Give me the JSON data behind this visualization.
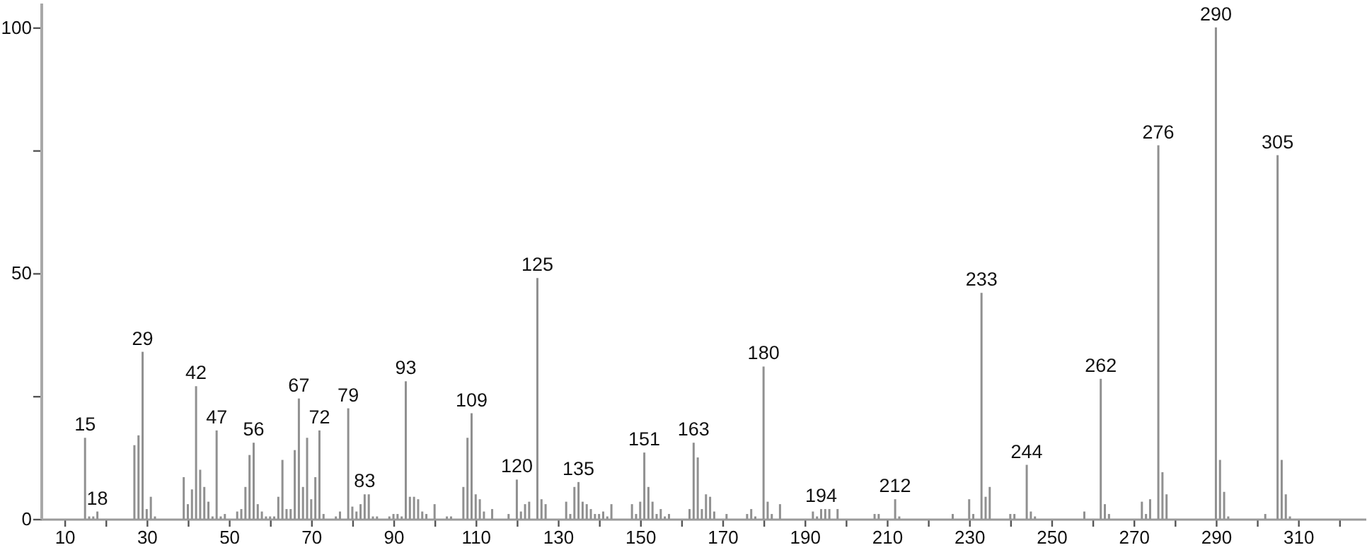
{
  "chart_data": {
    "type": "bar",
    "color": "#909090",
    "x": [
      15,
      16,
      17,
      18,
      27,
      28,
      29,
      30,
      31,
      32,
      39,
      40,
      41,
      42,
      43,
      44,
      45,
      46,
      47,
      48,
      49,
      52,
      53,
      54,
      55,
      56,
      57,
      58,
      59,
      60,
      61,
      62,
      63,
      64,
      65,
      66,
      67,
      68,
      69,
      70,
      71,
      72,
      73,
      76,
      77,
      79,
      80,
      81,
      82,
      83,
      84,
      85,
      86,
      89,
      90,
      91,
      92,
      93,
      94,
      95,
      96,
      97,
      98,
      100,
      103,
      104,
      107,
      108,
      109,
      110,
      111,
      112,
      114,
      118,
      120,
      121,
      122,
      123,
      125,
      126,
      127,
      132,
      133,
      134,
      135,
      136,
      137,
      138,
      139,
      140,
      141,
      142,
      143,
      148,
      149,
      150,
      151,
      152,
      153,
      154,
      155,
      156,
      157,
      162,
      163,
      164,
      165,
      166,
      167,
      168,
      171,
      176,
      177,
      178,
      180,
      181,
      182,
      184,
      192,
      193,
      194,
      195,
      196,
      198,
      207,
      208,
      212,
      213,
      226,
      230,
      231,
      233,
      234,
      235,
      240,
      241,
      244,
      245,
      246,
      258,
      262,
      263,
      264,
      272,
      273,
      274,
      276,
      277,
      278,
      290,
      291,
      292,
      293,
      302,
      305,
      306,
      307,
      308
    ],
    "values": [
      16.5,
      0.5,
      0.5,
      1.5,
      15,
      17,
      34,
      2,
      4.5,
      0.5,
      8.5,
      3,
      6,
      27,
      10,
      6.5,
      3.5,
      0.5,
      18,
      0.5,
      1,
      1.5,
      2,
      6.5,
      13,
      15.5,
      3,
      1.5,
      0.5,
      0.5,
      0.5,
      4.5,
      12,
      2,
      2,
      14,
      24.5,
      6.5,
      16.5,
      4,
      8.5,
      18,
      1,
      0.5,
      1.5,
      22.5,
      2.5,
      1.5,
      3,
      5,
      5,
      0.5,
      0.5,
      0.5,
      1,
      1,
      0.5,
      28,
      4.5,
      4.5,
      4,
      1.5,
      1,
      3,
      0.5,
      0.5,
      6.5,
      16.5,
      21.5,
      5,
      4,
      1.5,
      2,
      1,
      8,
      1.5,
      3,
      3.5,
      49,
      4,
      3,
      3.5,
      1,
      6.5,
      7.5,
      3.5,
      3,
      2,
      1,
      1,
      1.5,
      0.5,
      3,
      3,
      1,
      3.5,
      13.5,
      6.5,
      3.5,
      1,
      2,
      0.5,
      1,
      2,
      15.5,
      12.5,
      2,
      5,
      4.5,
      1.5,
      1,
      1,
      2,
      0.5,
      31,
      3.5,
      1,
      3,
      1.5,
      0.5,
      2,
      2,
      2,
      2,
      1,
      1,
      4,
      0.5,
      1,
      4,
      1,
      46,
      4.5,
      6.5,
      1,
      1,
      11,
      1.5,
      0.5,
      1.5,
      28.5,
      3,
      1,
      3.5,
      1,
      4,
      76,
      9.5,
      5,
      100,
      12,
      5.5,
      0.5,
      1,
      74,
      12,
      5,
      0.5
    ],
    "xlim": [
      4.3,
      326.4
    ],
    "ylim": [
      0,
      105
    ],
    "xticks": [
      10,
      {
        "value": 20,
        "label": null
      },
      30,
      {
        "value": 40,
        "label": null
      },
      50,
      {
        "value": 60,
        "label": null
      },
      70,
      {
        "value": 80,
        "label": null
      },
      90,
      {
        "value": 100,
        "label": null
      },
      110,
      {
        "value": 120,
        "label": null
      },
      130,
      {
        "value": 140,
        "label": null
      },
      150,
      {
        "value": 160,
        "label": null
      },
      170,
      {
        "value": 180,
        "label": null
      },
      190,
      {
        "value": 200,
        "label": null
      },
      210,
      {
        "value": 220,
        "label": null
      },
      230,
      {
        "value": 240,
        "label": null
      },
      250,
      {
        "value": 260,
        "label": null
      },
      270,
      {
        "value": 280,
        "label": null
      },
      290,
      {
        "value": 300,
        "label": null
      },
      310,
      {
        "value": 320,
        "label": null
      }
    ],
    "yticks": [
      0,
      {
        "value": 25,
        "label": null
      },
      50,
      {
        "value": 75,
        "label": null
      },
      100
    ],
    "annotations": [
      {
        "text": "15",
        "x": 15,
        "y": 16.5
      },
      {
        "text": "18",
        "x": 18,
        "y": 1.5
      },
      {
        "text": "29",
        "x": 29,
        "y": 34
      },
      {
        "text": "42",
        "x": 42,
        "y": 27
      },
      {
        "text": "47",
        "x": 47,
        "y": 18
      },
      {
        "text": "56",
        "x": 56,
        "y": 15.5
      },
      {
        "text": "67",
        "x": 67,
        "y": 24.5
      },
      {
        "text": "72",
        "x": 72,
        "y": 18
      },
      {
        "text": "79",
        "x": 79,
        "y": 22.5
      },
      {
        "text": "83",
        "x": 83,
        "y": 5
      },
      {
        "text": "93",
        "x": 93,
        "y": 28
      },
      {
        "text": "109",
        "x": 109,
        "y": 21.5
      },
      {
        "text": "120",
        "x": 120,
        "y": 8
      },
      {
        "text": "125",
        "x": 125,
        "y": 49
      },
      {
        "text": "135",
        "x": 135,
        "y": 7.5
      },
      {
        "text": "151",
        "x": 151,
        "y": 13.5
      },
      {
        "text": "163",
        "x": 163,
        "y": 15.5
      },
      {
        "text": "180",
        "x": 180,
        "y": 31
      },
      {
        "text": "194",
        "x": 194,
        "y": 2
      },
      {
        "text": "212",
        "x": 212,
        "y": 4
      },
      {
        "text": "233",
        "x": 233,
        "y": 46
      },
      {
        "text": "244",
        "x": 244,
        "y": 11
      },
      {
        "text": "262",
        "x": 262,
        "y": 28.5
      },
      {
        "text": "276",
        "x": 276,
        "y": 76
      },
      {
        "text": "290",
        "x": 290,
        "y": 100
      },
      {
        "text": "305",
        "x": 305,
        "y": 74
      }
    ]
  }
}
